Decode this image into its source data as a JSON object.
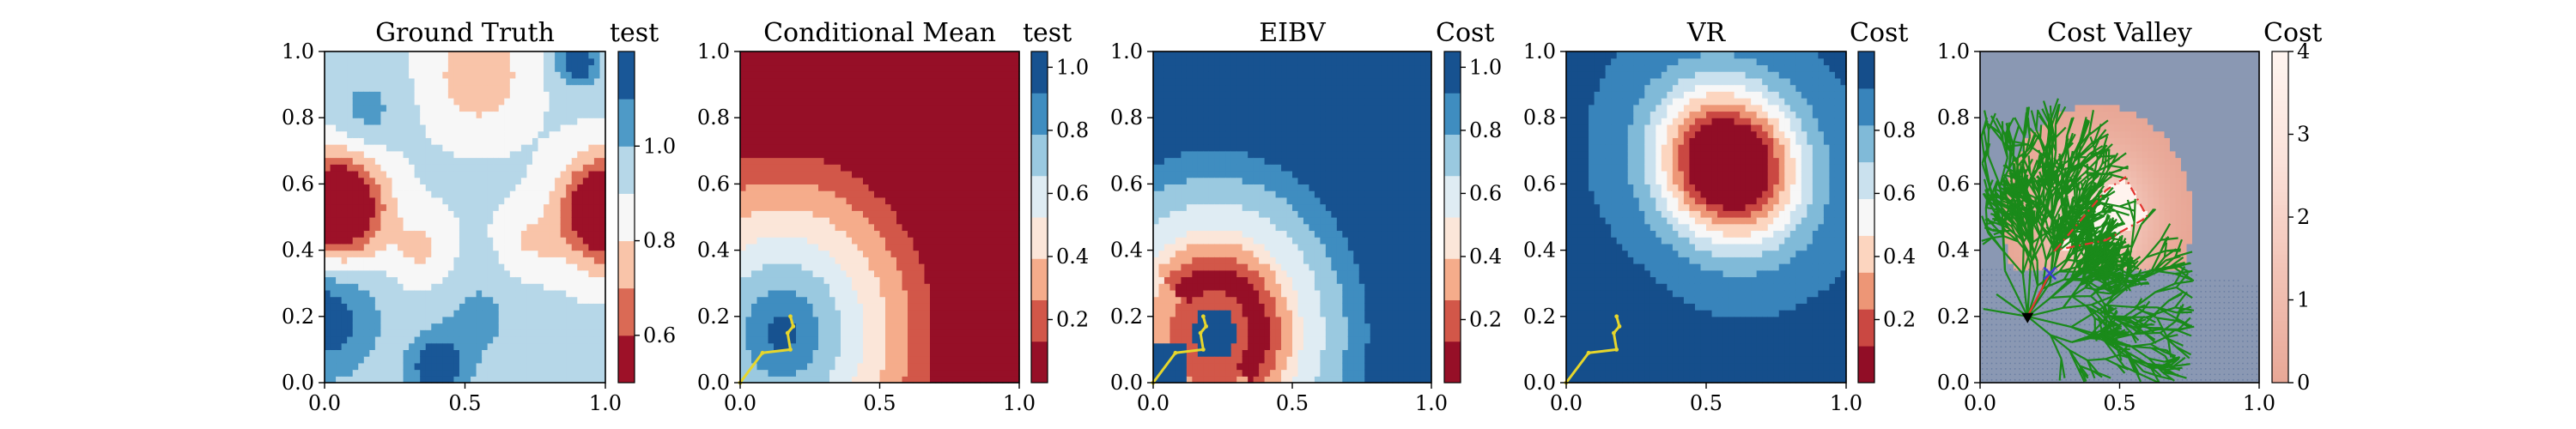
{
  "chart_data": [
    {
      "type": "heatmap",
      "title": "Ground Truth",
      "field": "ground_truth",
      "xlim": [
        0,
        1
      ],
      "ylim": [
        0,
        1
      ],
      "x_ticks": [
        "0.0",
        "0.5",
        "1.0"
      ],
      "y_ticks": [
        "0.0",
        "0.2",
        "0.4",
        "0.6",
        "0.8",
        "1.0"
      ],
      "colorbar": {
        "label": "test",
        "colormap": "RdBu",
        "range": [
          0.5,
          1.2
        ],
        "levels": 7,
        "tick_values": [
          0.6,
          0.8,
          1.0
        ],
        "tick_labels": [
          "0.6",
          "0.8",
          "1.0"
        ]
      },
      "bumps": [
        {
          "x": 0.05,
          "y": 0.53,
          "sigma": 0.11,
          "amp": -0.62
        },
        {
          "x": 1.0,
          "y": 0.52,
          "sigma": 0.11,
          "amp": -0.6
        },
        {
          "x": 0.35,
          "y": 0.4,
          "sigma": 0.08,
          "amp": -0.14
        },
        {
          "x": 0.72,
          "y": 0.42,
          "sigma": 0.08,
          "amp": -0.12
        },
        {
          "x": 0.55,
          "y": 0.93,
          "sigma": 0.12,
          "amp": -0.2
        },
        {
          "x": 0.9,
          "y": 0.97,
          "sigma": 0.05,
          "amp": 0.3
        },
        {
          "x": 0.0,
          "y": 0.2,
          "sigma": 0.13,
          "amp": 0.25
        },
        {
          "x": 0.4,
          "y": 0.04,
          "sigma": 0.07,
          "amp": 0.28
        },
        {
          "x": 0.15,
          "y": 0.82,
          "sigma": 0.08,
          "amp": 0.12
        },
        {
          "x": 0.55,
          "y": 0.2,
          "sigma": 0.12,
          "amp": 0.1
        }
      ],
      "base": 0.92
    },
    {
      "type": "heatmap",
      "title": "Conditional Mean",
      "field": "conditional_mean",
      "xlim": [
        0,
        1
      ],
      "ylim": [
        0,
        1
      ],
      "x_ticks": [
        "0.0",
        "0.5",
        "1.0"
      ],
      "y_ticks": [
        "0.0",
        "0.2",
        "0.4",
        "0.6",
        "0.8",
        "1.0"
      ],
      "colorbar": {
        "label": "test",
        "colormap": "RdBu",
        "range": [
          0.0,
          1.05
        ],
        "levels": 8,
        "tick_values": [
          0.2,
          0.4,
          0.6,
          0.8,
          1.0
        ],
        "tick_labels": [
          "0.2",
          "0.4",
          "0.6",
          "0.8",
          "1.0"
        ]
      },
      "center": {
        "x": 0.15,
        "y": 0.15
      },
      "radius_scale": 0.82,
      "path": [
        {
          "x": 0.0,
          "y": 0.0
        },
        {
          "x": 0.08,
          "y": 0.09
        },
        {
          "x": 0.18,
          "y": 0.1
        },
        {
          "x": 0.17,
          "y": 0.15
        },
        {
          "x": 0.19,
          "y": 0.17
        },
        {
          "x": 0.18,
          "y": 0.2
        }
      ]
    },
    {
      "type": "heatmap",
      "title": "EIBV",
      "field": "eibv",
      "xlim": [
        0,
        1
      ],
      "ylim": [
        0,
        1
      ],
      "x_ticks": [
        "0.0",
        "0.5",
        "1.0"
      ],
      "y_ticks": [
        "0.0",
        "0.2",
        "0.4",
        "0.6",
        "0.8",
        "1.0"
      ],
      "colorbar": {
        "label": "Cost",
        "colormap": "RdBu",
        "range": [
          0.0,
          1.05
        ],
        "levels": 8,
        "tick_values": [
          0.2,
          0.4,
          0.6,
          0.8,
          1.0
        ],
        "tick_labels": [
          "0.2",
          "0.4",
          "0.6",
          "0.8",
          "1.0"
        ]
      },
      "center": {
        "x": 0.22,
        "y": 0.15
      },
      "path": [
        {
          "x": 0.0,
          "y": 0.0
        },
        {
          "x": 0.08,
          "y": 0.09
        },
        {
          "x": 0.18,
          "y": 0.1
        },
        {
          "x": 0.17,
          "y": 0.15
        },
        {
          "x": 0.19,
          "y": 0.17
        },
        {
          "x": 0.18,
          "y": 0.2
        }
      ]
    },
    {
      "type": "heatmap",
      "title": "VR",
      "field": "vr",
      "xlim": [
        0,
        1
      ],
      "ylim": [
        0,
        1
      ],
      "x_ticks": [
        "0.0",
        "0.5",
        "1.0"
      ],
      "y_ticks": [
        "0.0",
        "0.2",
        "0.4",
        "0.6",
        "0.8",
        "1.0"
      ],
      "colorbar": {
        "label": "Cost",
        "colormap": "RdBu",
        "range": [
          0.0,
          1.05
        ],
        "levels": 9,
        "tick_values": [
          0.2,
          0.4,
          0.6,
          0.8
        ],
        "tick_labels": [
          "0.2",
          "0.4",
          "0.6",
          "0.8"
        ]
      },
      "path": [
        {
          "x": 0.0,
          "y": 0.0
        },
        {
          "x": 0.08,
          "y": 0.09
        },
        {
          "x": 0.18,
          "y": 0.1
        },
        {
          "x": 0.17,
          "y": 0.15
        },
        {
          "x": 0.19,
          "y": 0.17
        },
        {
          "x": 0.18,
          "y": 0.2
        }
      ]
    },
    {
      "type": "heatmap",
      "title": "Cost Valley",
      "field": "cost_valley",
      "xlim": [
        0,
        1
      ],
      "ylim": [
        0,
        1
      ],
      "x_ticks": [
        "0.0",
        "0.5",
        "1.0"
      ],
      "y_ticks": [
        "0.0",
        "0.2",
        "0.4",
        "0.6",
        "0.8",
        "1.0"
      ],
      "colorbar": {
        "label": "Cost",
        "colormap": "Reds_r",
        "range": [
          0,
          4
        ],
        "levels": 0,
        "tick_values": [
          0,
          1,
          2,
          3,
          4
        ],
        "tick_labels": [
          "0",
          "1",
          "2",
          "3",
          "4"
        ]
      },
      "start": {
        "x": 0.17,
        "y": 0.2
      },
      "target": {
        "x": 0.25,
        "y": 0.33
      },
      "boundary": [
        {
          "x": 0.27,
          "y": 0.4
        },
        {
          "x": 0.45,
          "y": 0.58
        },
        {
          "x": 0.52,
          "y": 0.62
        },
        {
          "x": 0.6,
          "y": 0.5
        },
        {
          "x": 0.45,
          "y": 0.43
        }
      ],
      "tree_color": "#1a8a1a",
      "path_color": "#e3342f"
    }
  ]
}
